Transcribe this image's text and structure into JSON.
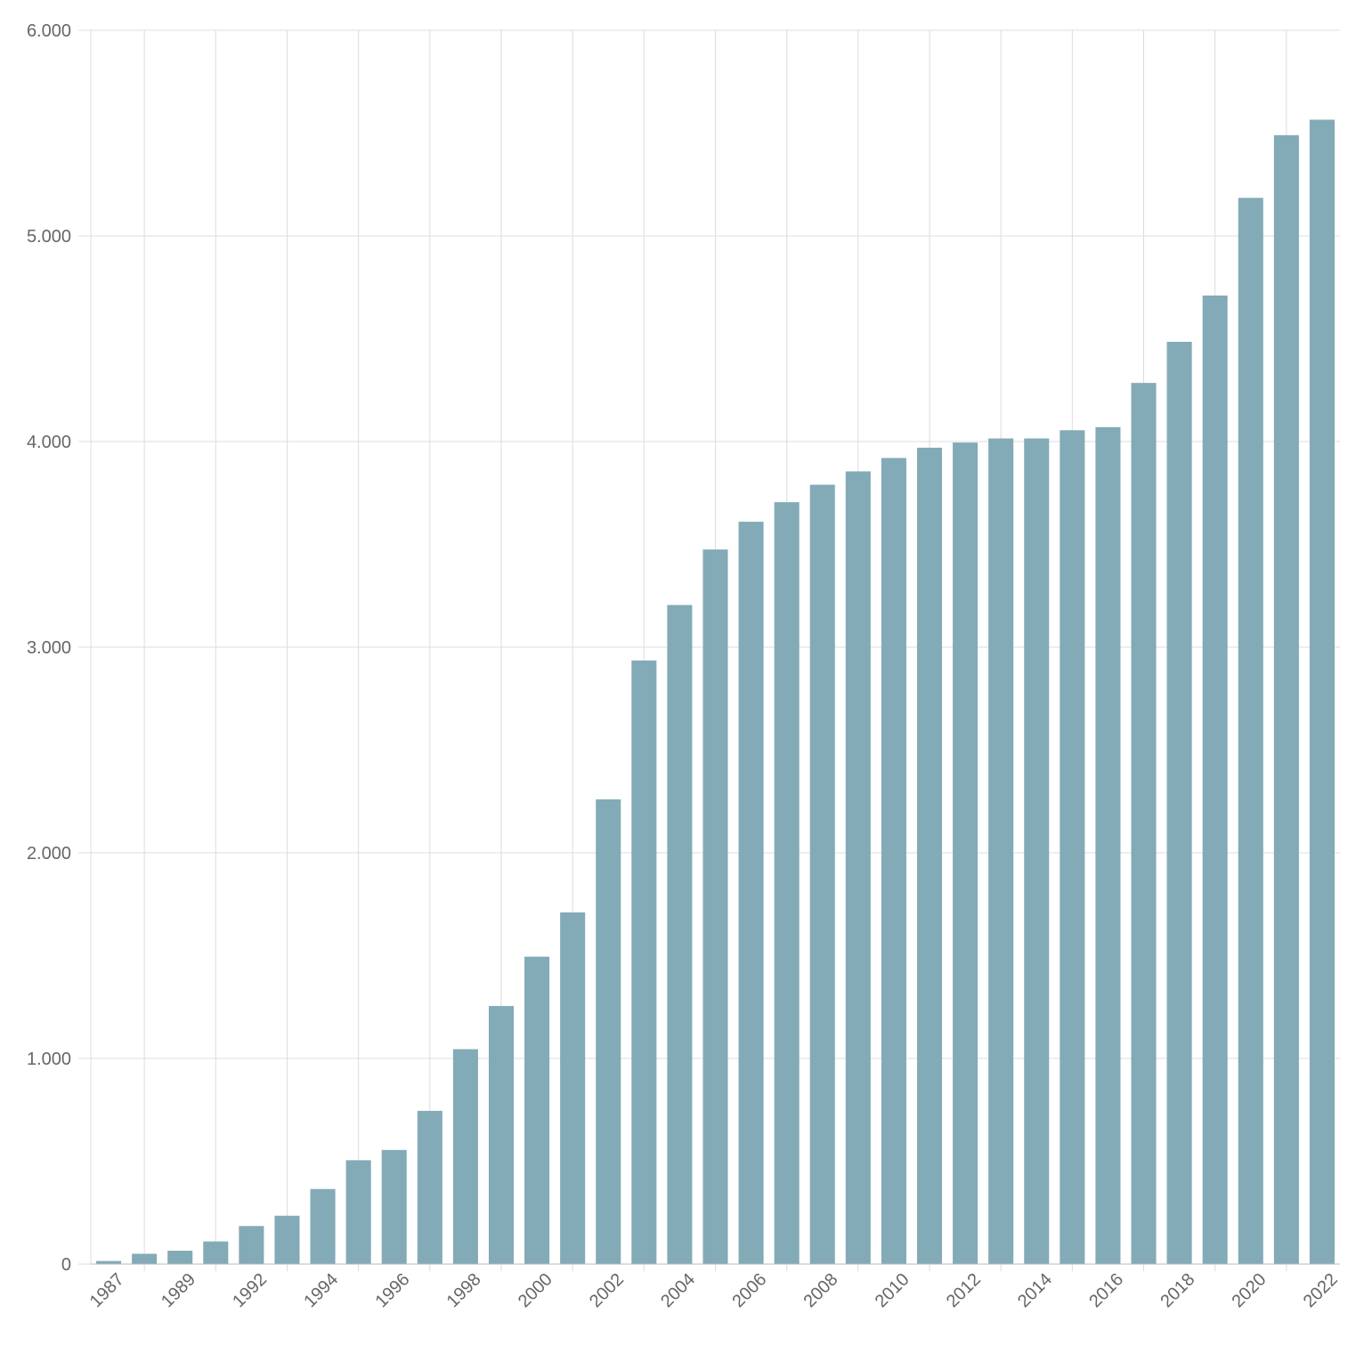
{
  "chart_data": {
    "type": "bar",
    "categories": [
      "1987",
      null,
      "1989",
      null,
      "1992",
      null,
      "1994",
      null,
      "1996",
      null,
      "1998",
      null,
      "2000",
      null,
      "2002",
      null,
      "2004",
      null,
      "2006",
      null,
      "2008",
      null,
      "2010",
      null,
      "2012",
      null,
      "2014",
      null,
      "2016",
      null,
      "2018",
      null,
      "2020",
      null,
      "2022"
    ],
    "values": [
      15,
      50,
      65,
      110,
      185,
      235,
      365,
      505,
      555,
      745,
      1045,
      1255,
      1495,
      1710,
      2260,
      2935,
      3205,
      3475,
      3610,
      3705,
      3790,
      3855,
      3920,
      3970,
      3995,
      4015,
      4015,
      4055,
      4070,
      4285,
      4485,
      4710,
      5185,
      5490,
      5565
    ],
    "color": "#83aab7",
    "ylim": [
      0,
      6000
    ],
    "yticks": [
      0,
      {
        "value": 1000,
        "label": "1.000"
      },
      {
        "value": 2000,
        "label": "2.000"
      },
      {
        "value": 3000,
        "label": "3.000"
      },
      {
        "value": 4000,
        "label": "4.000"
      },
      {
        "value": 5000,
        "label": "5.000"
      },
      {
        "value": 6000,
        "label": "6.000"
      }
    ],
    "grid": true
  }
}
